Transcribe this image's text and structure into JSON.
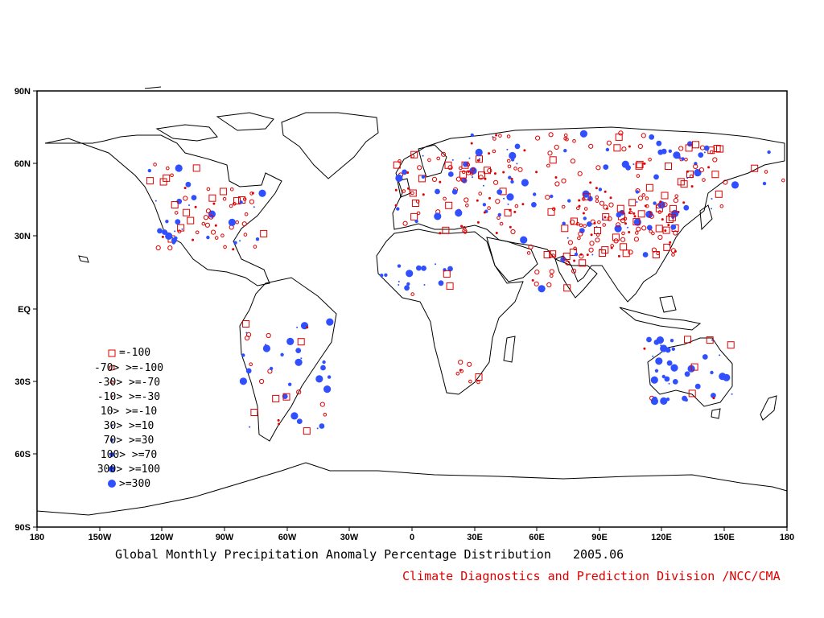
{
  "map": {
    "title": "Global Monthly Precipitation Anomaly Percentage Distribution",
    "period": "2005.06",
    "credit": "Climate Diagnostics and Prediction Division /NCC/CMA",
    "credit_color": "#e00000",
    "dry_color": "#e00000",
    "wet_color": "#3050ff",
    "lat_ticks": [
      "90N",
      "60N",
      "30N",
      "EQ",
      "30S",
      "60S",
      "90S"
    ],
    "lon_ticks": [
      "180",
      "150W",
      "120W",
      "90W",
      "60W",
      "30W",
      "0",
      "30E",
      "60E",
      "90E",
      "120E",
      "150E",
      "180"
    ]
  },
  "legend": [
    {
      "label": "=-100",
      "marker": "red-square-large"
    },
    {
      "label": "-70> >=-100",
      "marker": "red-circle-medium"
    },
    {
      "label": "-30> >=-70",
      "marker": "red-circle-small"
    },
    {
      "label": "-10> >=-30",
      "marker": "red-dot"
    },
    {
      "label": "10> >=-10",
      "marker": "black-dot"
    },
    {
      "label": "30> >=10",
      "marker": "blue-dot-tiny"
    },
    {
      "label": "70> >=30",
      "marker": "blue-dot-small"
    },
    {
      "label": "100> >=70",
      "marker": "blue-dot-medium"
    },
    {
      "label": "300> >=100",
      "marker": "blue-dot-large"
    },
    {
      "label": ">=300",
      "marker": "blue-dot-xlarge"
    }
  ]
}
